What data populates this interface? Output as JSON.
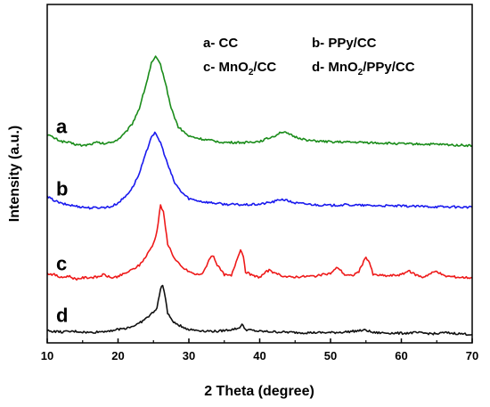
{
  "chart_data": {
    "type": "line",
    "xlabel": "2 Theta (degree)",
    "ylabel": "Intensity (a.u.)",
    "xlim": [
      10,
      70
    ],
    "xticks": [
      "10",
      "20",
      "30",
      "40",
      "50",
      "60",
      "70"
    ],
    "grid": false,
    "legend_position": "top-right",
    "legend": [
      {
        "key": "a",
        "text_main": "a- CC",
        "sub": "",
        "tail": ""
      },
      {
        "key": "b",
        "text_main": "b- PPy/CC",
        "sub": "",
        "tail": ""
      },
      {
        "key": "c",
        "text_main": "c- MnO",
        "sub": "2",
        "tail": "/CC"
      },
      {
        "key": "d",
        "text_main": "d- MnO",
        "sub": "2",
        "tail": "/PPy/CC"
      }
    ],
    "series": [
      {
        "name": "a",
        "label": "a",
        "color": "#1a8c1a",
        "offset": 3.05,
        "points": [
          [
            10,
            0.18
          ],
          [
            11,
            0.12
          ],
          [
            12,
            0.07
          ],
          [
            13,
            0.05
          ],
          [
            14,
            0.02
          ],
          [
            15,
            0.0
          ],
          [
            16,
            0.02
          ],
          [
            17,
            0.05
          ],
          [
            18,
            0.03
          ],
          [
            19,
            0.05
          ],
          [
            20,
            0.1
          ],
          [
            21,
            0.2
          ],
          [
            22,
            0.35
          ],
          [
            23,
            0.6
          ],
          [
            24,
            1.0
          ],
          [
            24.7,
            1.32
          ],
          [
            25.3,
            1.42
          ],
          [
            26,
            1.3
          ],
          [
            26.7,
            1.0
          ],
          [
            27.5,
            0.6
          ],
          [
            28.5,
            0.3
          ],
          [
            30,
            0.15
          ],
          [
            32,
            0.1
          ],
          [
            35,
            0.05
          ],
          [
            38,
            0.05
          ],
          [
            40,
            0.07
          ],
          [
            42,
            0.15
          ],
          [
            43,
            0.22
          ],
          [
            43.5,
            0.21
          ],
          [
            45,
            0.14
          ],
          [
            47,
            0.08
          ],
          [
            50,
            0.06
          ],
          [
            55,
            0.05
          ],
          [
            60,
            0.03
          ],
          [
            65,
            0.02
          ],
          [
            70,
            0.0
          ]
        ]
      },
      {
        "name": "b",
        "label": "b",
        "color": "#1a1aee",
        "offset": 2.05,
        "points": [
          [
            10,
            0.18
          ],
          [
            11,
            0.12
          ],
          [
            12,
            0.07
          ],
          [
            14,
            0.03
          ],
          [
            16,
            0.0
          ],
          [
            18,
            0.01
          ],
          [
            19,
            0.02
          ],
          [
            20,
            0.08
          ],
          [
            21,
            0.18
          ],
          [
            22,
            0.32
          ],
          [
            23,
            0.55
          ],
          [
            24,
            0.9
          ],
          [
            24.7,
            1.15
          ],
          [
            25.2,
            1.2
          ],
          [
            26,
            1.05
          ],
          [
            27,
            0.7
          ],
          [
            28,
            0.4
          ],
          [
            29,
            0.25
          ],
          [
            30,
            0.15
          ],
          [
            32,
            0.1
          ],
          [
            35,
            0.06
          ],
          [
            38,
            0.05
          ],
          [
            40,
            0.06
          ],
          [
            42,
            0.1
          ],
          [
            43,
            0.14
          ],
          [
            43.5,
            0.13
          ],
          [
            45,
            0.08
          ],
          [
            48,
            0.05
          ],
          [
            50,
            0.04
          ],
          [
            52,
            0.05
          ],
          [
            55,
            0.04
          ],
          [
            60,
            0.03
          ],
          [
            65,
            0.02
          ],
          [
            70,
            0.01
          ]
        ]
      },
      {
        "name": "c",
        "label": "c",
        "color": "#ee1a1a",
        "offset": 0.88,
        "points": [
          [
            10,
            0.12
          ],
          [
            11,
            0.1
          ],
          [
            12,
            0.05
          ],
          [
            13,
            0.08
          ],
          [
            14,
            0.03
          ],
          [
            15,
            0.05
          ],
          [
            17,
            0.06
          ],
          [
            18,
            0.1
          ],
          [
            19,
            0.05
          ],
          [
            20,
            0.07
          ],
          [
            21,
            0.12
          ],
          [
            22,
            0.18
          ],
          [
            23,
            0.25
          ],
          [
            24,
            0.4
          ],
          [
            25,
            0.6
          ],
          [
            25.5,
            0.8
          ],
          [
            26,
            1.22
          ],
          [
            26.4,
            1.1
          ],
          [
            27,
            0.6
          ],
          [
            28,
            0.35
          ],
          [
            29,
            0.22
          ],
          [
            30,
            0.15
          ],
          [
            31,
            0.1
          ],
          [
            32,
            0.12
          ],
          [
            33,
            0.38
          ],
          [
            33.5,
            0.4
          ],
          [
            34,
            0.25
          ],
          [
            35,
            0.1
          ],
          [
            36,
            0.08
          ],
          [
            37,
            0.42
          ],
          [
            37.3,
            0.5
          ],
          [
            37.7,
            0.4
          ],
          [
            38,
            0.15
          ],
          [
            39,
            0.08
          ],
          [
            40,
            0.06
          ],
          [
            41,
            0.15
          ],
          [
            41.5,
            0.18
          ],
          [
            42,
            0.12
          ],
          [
            44,
            0.06
          ],
          [
            46,
            0.07
          ],
          [
            48,
            0.08
          ],
          [
            50,
            0.12
          ],
          [
            51,
            0.22
          ],
          [
            52,
            0.1
          ],
          [
            53,
            0.08
          ],
          [
            54,
            0.15
          ],
          [
            55,
            0.38
          ],
          [
            55.5,
            0.3
          ],
          [
            56,
            0.1
          ],
          [
            58,
            0.08
          ],
          [
            60,
            0.1
          ],
          [
            61,
            0.16
          ],
          [
            62,
            0.1
          ],
          [
            63,
            0.06
          ],
          [
            65,
            0.16
          ],
          [
            66,
            0.08
          ],
          [
            68,
            0.06
          ],
          [
            70,
            0.05
          ]
        ]
      },
      {
        "name": "d",
        "label": "d",
        "color": "#111111",
        "offset": 0.0,
        "points": [
          [
            10,
            0.08
          ],
          [
            12,
            0.06
          ],
          [
            14,
            0.07
          ],
          [
            16,
            0.05
          ],
          [
            18,
            0.07
          ],
          [
            20,
            0.1
          ],
          [
            21,
            0.12
          ],
          [
            22,
            0.15
          ],
          [
            23,
            0.2
          ],
          [
            24,
            0.28
          ],
          [
            25,
            0.38
          ],
          [
            25.5,
            0.45
          ],
          [
            26,
            0.75
          ],
          [
            26.3,
            0.82
          ],
          [
            26.7,
            0.6
          ],
          [
            27,
            0.35
          ],
          [
            28,
            0.2
          ],
          [
            30,
            0.1
          ],
          [
            32,
            0.08
          ],
          [
            34,
            0.07
          ],
          [
            36,
            0.1
          ],
          [
            37,
            0.12
          ],
          [
            37.5,
            0.18
          ],
          [
            38,
            0.1
          ],
          [
            40,
            0.07
          ],
          [
            43,
            0.06
          ],
          [
            46,
            0.05
          ],
          [
            50,
            0.05
          ],
          [
            52,
            0.06
          ],
          [
            55,
            0.09
          ],
          [
            56,
            0.05
          ],
          [
            60,
            0.04
          ],
          [
            62,
            0.05
          ],
          [
            65,
            0.03
          ],
          [
            66,
            0.05
          ],
          [
            70,
            0.02
          ]
        ]
      }
    ]
  }
}
